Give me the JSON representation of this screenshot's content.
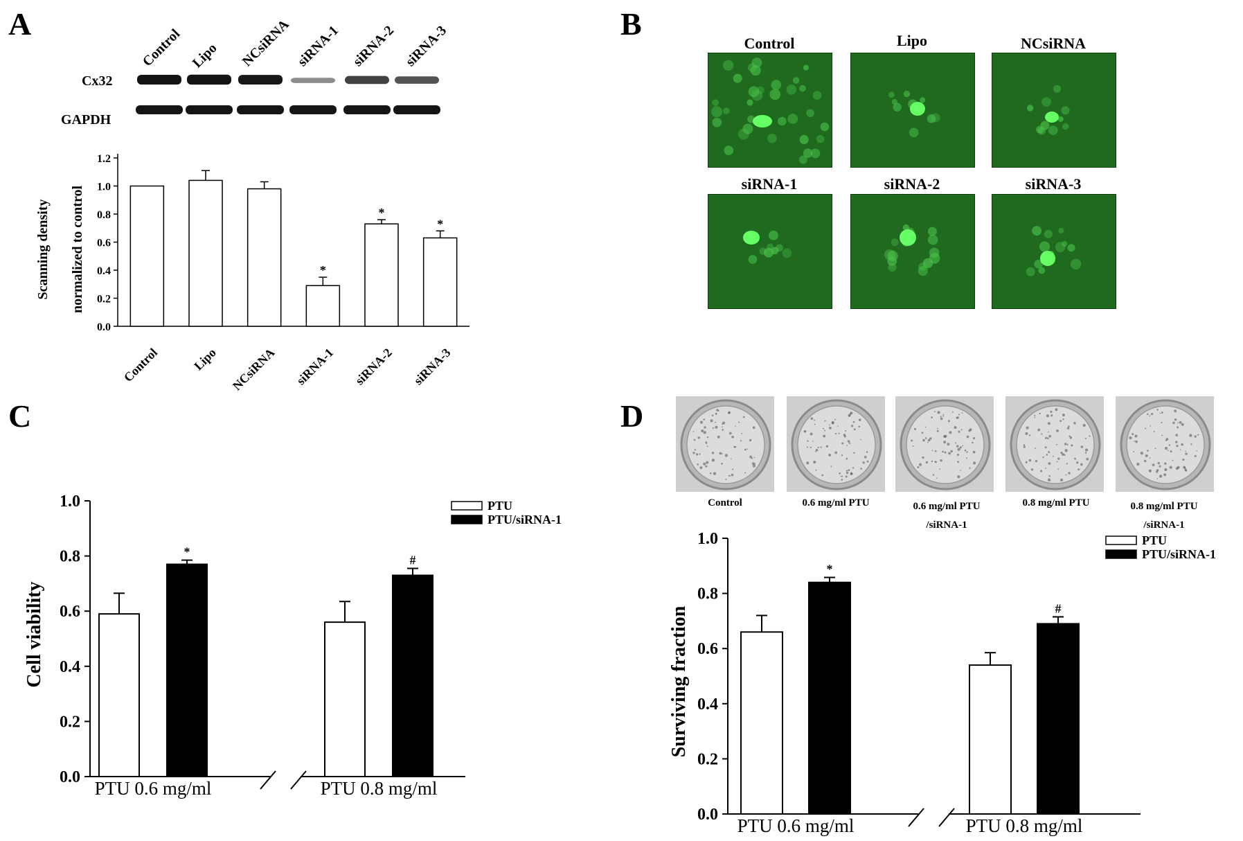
{
  "panels": {
    "A": "A",
    "B": "B",
    "C": "C",
    "D": "D"
  },
  "blot": {
    "lanes": [
      "Control",
      "Lipo",
      "NCsiRNA",
      "siRNA-1",
      "siRNA-2",
      "siRNA-3"
    ],
    "rows": [
      "Cx32",
      "GAPDH"
    ],
    "cx32_intensity": [
      1.0,
      1.04,
      0.98,
      0.29,
      0.73,
      0.63
    ]
  },
  "fluorescence": {
    "labels": [
      "Control",
      "Lipo",
      "NCsiRNA",
      "siRNA-1",
      "siRNA-2",
      "siRNA-3"
    ],
    "image_color": "#1f6a1f",
    "spot_color": "#4dff4d"
  },
  "dishes": {
    "labels": [
      "Control",
      "0.6 mg/ml PTU",
      "0.6 mg/ml PTU\n/siRNA-1",
      "0.8 mg/ml PTU",
      "0.8 mg/ml PTU\n/siRNA-1"
    ]
  },
  "chart_data": [
    {
      "id": "A",
      "type": "bar",
      "categories": [
        "Control",
        "Lipo",
        "NCsiRNA",
        "siRNA-1",
        "siRNA-2",
        "siRNA-3"
      ],
      "values": [
        1.0,
        1.04,
        0.98,
        0.29,
        0.73,
        0.63
      ],
      "errors": [
        0,
        0.07,
        0.05,
        0.06,
        0.03,
        0.05
      ],
      "annotations": [
        "",
        "",
        "",
        "*",
        "*",
        "*"
      ],
      "ylabel_line1": "Scanning density",
      "ylabel_line2": "normalized to control",
      "ylim": [
        0,
        1.2
      ],
      "yticks": [
        "0.0",
        "0.2",
        "0.4",
        "0.6",
        "0.8",
        "1.0",
        "1.2"
      ],
      "bar_fill": "#ffffff"
    },
    {
      "id": "C",
      "type": "bar",
      "groups": [
        "PTU 0.6 mg/ml",
        "PTU 0.8 mg/ml"
      ],
      "series": [
        {
          "name": "PTU",
          "values": [
            0.59,
            0.56
          ],
          "errors": [
            0.075,
            0.075
          ],
          "annotations": [
            "",
            ""
          ],
          "color": "#ffffff"
        },
        {
          "name": "PTU/siRNA-1",
          "values": [
            0.77,
            0.73
          ],
          "errors": [
            0.015,
            0.025
          ],
          "annotations": [
            "*",
            "#"
          ],
          "color": "#000000"
        }
      ],
      "ylabel": "Cell viability",
      "ylim": [
        0,
        1.0
      ],
      "yticks": [
        "0.0",
        "0.2",
        "0.4",
        "0.6",
        "0.8",
        "1.0"
      ]
    },
    {
      "id": "D",
      "type": "bar",
      "groups": [
        "PTU 0.6 mg/ml",
        "PTU 0.8 mg/ml"
      ],
      "series": [
        {
          "name": "PTU",
          "values": [
            0.66,
            0.54
          ],
          "errors": [
            0.06,
            0.045
          ],
          "annotations": [
            "",
            ""
          ],
          "color": "#ffffff"
        },
        {
          "name": "PTU/siRNA-1",
          "values": [
            0.84,
            0.69
          ],
          "errors": [
            0.018,
            0.025
          ],
          "annotations": [
            "*",
            "#"
          ],
          "color": "#000000"
        }
      ],
      "ylabel": "Surviving  fraction",
      "ylim": [
        0,
        1.0
      ],
      "yticks": [
        "0.0",
        "0.2",
        "0.4",
        "0.6",
        "0.8",
        "1.0"
      ]
    }
  ]
}
